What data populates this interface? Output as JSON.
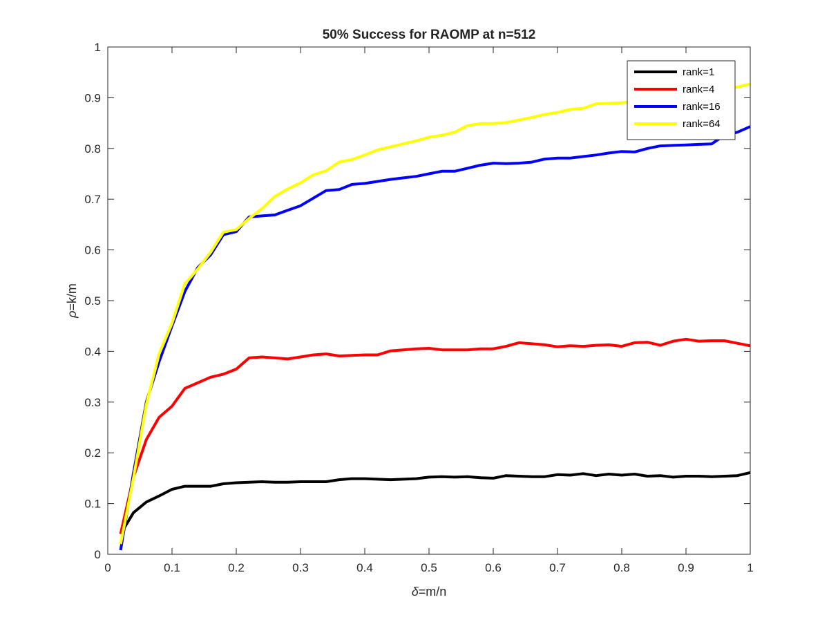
{
  "chart_data": {
    "type": "line",
    "title": "50% Success for RAOMP at n=512",
    "xlabel": {
      "symbol": "δ",
      "text": "=m/n"
    },
    "ylabel": {
      "symbol": "ρ",
      "text": "=k/m"
    },
    "xlim": [
      0,
      1
    ],
    "ylim": [
      0,
      1
    ],
    "xticks": [
      0,
      0.1,
      0.2,
      0.3,
      0.4,
      0.5,
      0.6,
      0.7,
      0.8,
      0.9,
      1
    ],
    "yticks": [
      0,
      0.1,
      0.2,
      0.3,
      0.4,
      0.5,
      0.6,
      0.7,
      0.8,
      0.9,
      1
    ],
    "xtick_labels": [
      "0",
      "0.1",
      "0.2",
      "0.3",
      "0.4",
      "0.5",
      "0.6",
      "0.7",
      "0.8",
      "0.9",
      "1"
    ],
    "ytick_labels": [
      "0",
      "0.1",
      "0.2",
      "0.3",
      "0.4",
      "0.5",
      "0.6",
      "0.7",
      "0.8",
      "0.9",
      "1"
    ],
    "grid": false,
    "legend_position": "top-right",
    "x": [
      0.02,
      0.04,
      0.06,
      0.08,
      0.1,
      0.12,
      0.14,
      0.16,
      0.18,
      0.2,
      0.22,
      0.24,
      0.26,
      0.28,
      0.3,
      0.32,
      0.34,
      0.36,
      0.38,
      0.4,
      0.42,
      0.44,
      0.46,
      0.48,
      0.5,
      0.52,
      0.54,
      0.56,
      0.58,
      0.6,
      0.62,
      0.64,
      0.66,
      0.68,
      0.7,
      0.72,
      0.74,
      0.76,
      0.78,
      0.8,
      0.82,
      0.84,
      0.86,
      0.88,
      0.9,
      0.92,
      0.94,
      0.96,
      0.98,
      1.0
    ],
    "series": [
      {
        "name": "rank=1",
        "color": "#000000",
        "values": [
          0.04,
          0.082,
          0.103,
          0.115,
          0.128,
          0.134,
          0.134,
          0.134,
          0.139,
          0.141,
          0.142,
          0.143,
          0.142,
          0.142,
          0.143,
          0.143,
          0.143,
          0.147,
          0.149,
          0.149,
          0.148,
          0.147,
          0.148,
          0.149,
          0.152,
          0.153,
          0.152,
          0.153,
          0.151,
          0.15,
          0.155,
          0.154,
          0.153,
          0.153,
          0.157,
          0.156,
          0.159,
          0.155,
          0.158,
          0.156,
          0.158,
          0.154,
          0.155,
          0.152,
          0.154,
          0.154,
          0.153,
          0.154,
          0.155,
          0.161
        ]
      },
      {
        "name": "rank=4",
        "color": "#ff0000",
        "values": [
          0.04,
          0.152,
          0.226,
          0.27,
          0.292,
          0.327,
          0.338,
          0.349,
          0.355,
          0.365,
          0.387,
          0.389,
          0.387,
          0.385,
          0.389,
          0.393,
          0.395,
          0.391,
          0.392,
          0.393,
          0.393,
          0.401,
          0.403,
          0.405,
          0.406,
          0.403,
          0.403,
          0.403,
          0.405,
          0.405,
          0.41,
          0.417,
          0.415,
          0.413,
          0.409,
          0.411,
          0.41,
          0.412,
          0.413,
          0.41,
          0.417,
          0.418,
          0.412,
          0.42,
          0.424,
          0.42,
          0.421,
          0.421,
          0.416,
          0.411
        ]
      },
      {
        "name": "rank=16",
        "color": "#0000ff",
        "values": [
          0.008,
          0.16,
          0.3,
          0.38,
          0.45,
          0.518,
          0.565,
          0.59,
          0.63,
          0.636,
          0.665,
          0.667,
          0.669,
          0.678,
          0.687,
          0.702,
          0.717,
          0.719,
          0.729,
          0.731,
          0.735,
          0.739,
          0.742,
          0.745,
          0.75,
          0.755,
          0.755,
          0.761,
          0.767,
          0.771,
          0.77,
          0.771,
          0.773,
          0.779,
          0.781,
          0.781,
          0.784,
          0.787,
          0.791,
          0.794,
          0.793,
          0.8,
          0.805,
          0.806,
          0.807,
          0.808,
          0.809,
          0.826,
          0.832,
          0.843
        ]
      },
      {
        "name": "rank=64",
        "color": "#ffff00",
        "values": [
          0.02,
          0.15,
          0.295,
          0.395,
          0.455,
          0.533,
          0.562,
          0.595,
          0.635,
          0.64,
          0.662,
          0.681,
          0.705,
          0.72,
          0.732,
          0.748,
          0.756,
          0.773,
          0.778,
          0.787,
          0.797,
          0.803,
          0.809,
          0.815,
          0.822,
          0.826,
          0.832,
          0.845,
          0.849,
          0.849,
          0.851,
          0.856,
          0.861,
          0.867,
          0.871,
          0.877,
          0.879,
          0.888,
          0.889,
          0.89,
          0.893,
          0.896,
          0.9,
          0.904,
          0.908,
          0.912,
          0.915,
          0.918,
          0.921,
          0.927
        ]
      }
    ]
  }
}
